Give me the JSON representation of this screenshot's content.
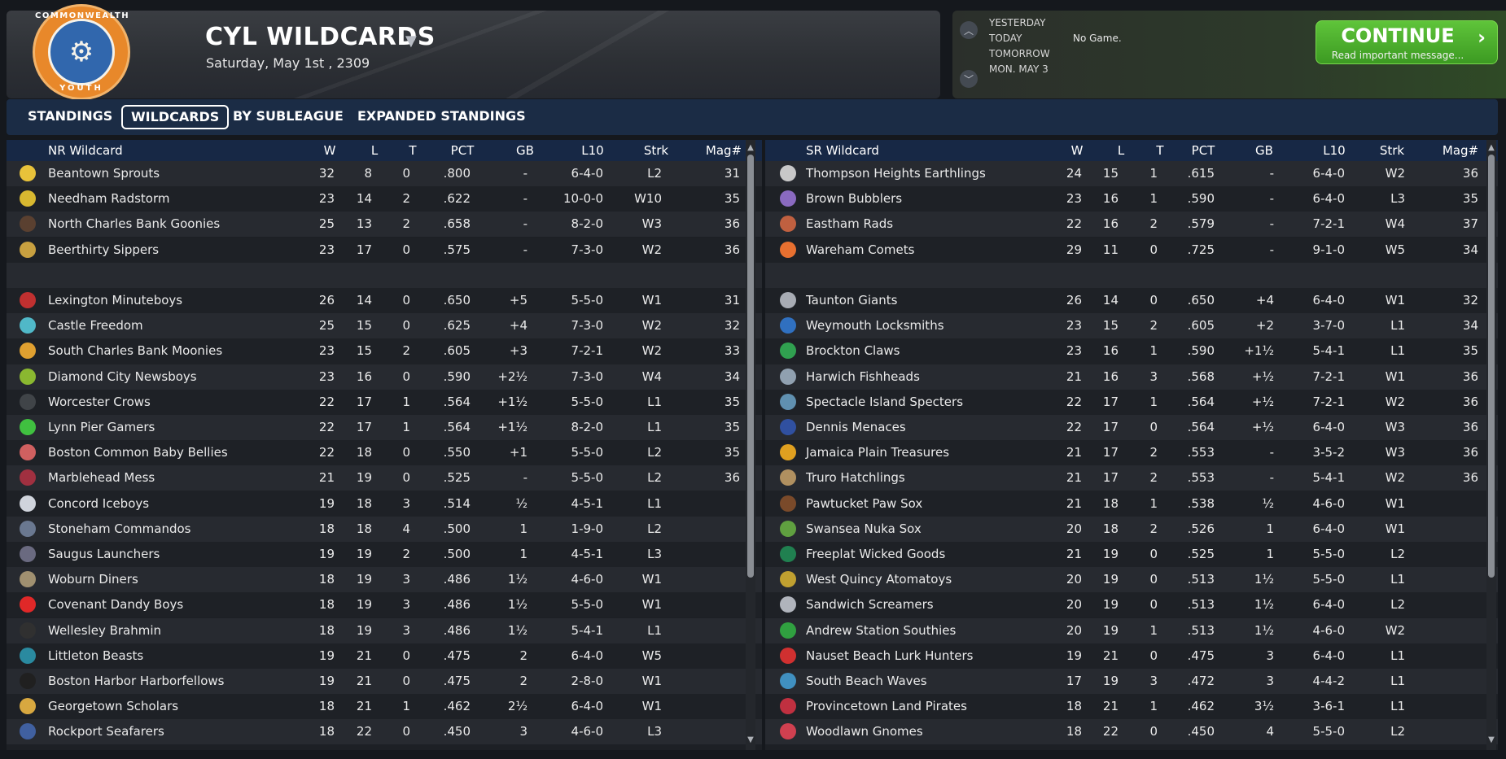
{
  "header": {
    "title": "CYL WILDCARDS",
    "date": "Saturday, May 1st , 2309",
    "logo_text_top": "COMMONWEALTH",
    "logo_text_bottom": "YOUTH"
  },
  "schedule": {
    "days": [
      "YESTERDAY",
      "TODAY",
      "TOMORROW",
      "MON. MAY 3"
    ],
    "today_status": "No Game."
  },
  "continue": {
    "label": "CONTINUE",
    "sub": "Read important message..."
  },
  "tabs": [
    {
      "label": "STANDINGS",
      "active": false
    },
    {
      "label": "WILDCARDS",
      "active": true
    },
    {
      "label": "BY SUBLEAGUE",
      "active": false
    },
    {
      "label": "EXPANDED STANDINGS",
      "active": false
    }
  ],
  "columns": [
    "W",
    "L",
    "T",
    "PCT",
    "GB",
    "L10",
    "Strk",
    "Mag#"
  ],
  "left_table": {
    "title": "NR  Wildcard",
    "leaders": [
      {
        "icon": "sprout-icon",
        "color": "#e8c23a",
        "name": "Beantown Sprouts",
        "w": "32",
        "l": "8",
        "t": "0",
        "pct": ".800",
        "gb": "-",
        "l10": "6-4-0",
        "strk": "L2",
        "mag": "31"
      },
      {
        "icon": "radiation-icon",
        "color": "#d8b830",
        "name": "Needham Radstorm",
        "w": "23",
        "l": "14",
        "t": "2",
        "pct": ".622",
        "gb": "-",
        "l10": "10-0-0",
        "strk": "W10",
        "mag": "35"
      },
      {
        "icon": "goonie-icon",
        "color": "#5a4030",
        "name": "North Charles Bank Goonies",
        "w": "25",
        "l": "13",
        "t": "2",
        "pct": ".658",
        "gb": "-",
        "l10": "8-2-0",
        "strk": "W3",
        "mag": "36"
      },
      {
        "icon": "beer-icon",
        "color": "#c8a040",
        "name": "Beerthirty Sippers",
        "w": "23",
        "l": "17",
        "t": "0",
        "pct": ".575",
        "gb": "-",
        "l10": "7-3-0",
        "strk": "W2",
        "mag": "36"
      }
    ],
    "teams": [
      {
        "icon": "minuteman-icon",
        "color": "#c03030",
        "name": "Lexington Minuteboys",
        "w": "26",
        "l": "14",
        "t": "0",
        "pct": ".650",
        "gb": "+5",
        "l10": "5-5-0",
        "strk": "W1",
        "mag": "31"
      },
      {
        "icon": "tower-icon",
        "color": "#50b8c8",
        "name": "Castle Freedom",
        "w": "25",
        "l": "15",
        "t": "0",
        "pct": ".625",
        "gb": "+4",
        "l10": "7-3-0",
        "strk": "W2",
        "mag": "32"
      },
      {
        "icon": "moon-icon",
        "color": "#e0a030",
        "name": "South Charles Bank Moonies",
        "w": "23",
        "l": "15",
        "t": "2",
        "pct": ".605",
        "gb": "+3",
        "l10": "7-2-1",
        "strk": "W2",
        "mag": "33"
      },
      {
        "icon": "newspaper-icon",
        "color": "#8ab830",
        "name": "Diamond City Newsboys",
        "w": "23",
        "l": "16",
        "t": "0",
        "pct": ".590",
        "gb": "+2½",
        "l10": "7-3-0",
        "strk": "W4",
        "mag": "34"
      },
      {
        "icon": "crow-icon",
        "color": "#404448",
        "name": "Worcester Crows",
        "w": "22",
        "l": "17",
        "t": "1",
        "pct": ".564",
        "gb": "+1½",
        "l10": "5-5-0",
        "strk": "L1",
        "mag": "35"
      },
      {
        "icon": "gamer-icon",
        "color": "#40c040",
        "name": "Lynn Pier Gamers",
        "w": "22",
        "l": "17",
        "t": "1",
        "pct": ".564",
        "gb": "+1½",
        "l10": "8-2-0",
        "strk": "L1",
        "mag": "35"
      },
      {
        "icon": "baby-icon",
        "color": "#d06060",
        "name": "Boston Common Baby Bellies",
        "w": "22",
        "l": "18",
        "t": "0",
        "pct": ".550",
        "gb": "+1",
        "l10": "5-5-0",
        "strk": "L2",
        "mag": "35"
      },
      {
        "icon": "mess-icon",
        "color": "#a03040",
        "name": "Marblehead Mess",
        "w": "21",
        "l": "19",
        "t": "0",
        "pct": ".525",
        "gb": "-",
        "l10": "5-5-0",
        "strk": "L2",
        "mag": "36"
      },
      {
        "icon": "iceboy-icon",
        "color": "#d0d4dc",
        "name": "Concord Iceboys",
        "w": "19",
        "l": "18",
        "t": "3",
        "pct": ".514",
        "gb": "½",
        "l10": "4-5-1",
        "strk": "L1",
        "mag": ""
      },
      {
        "icon": "commando-icon",
        "color": "#6a7890",
        "name": "Stoneham Commandos",
        "w": "18",
        "l": "18",
        "t": "4",
        "pct": ".500",
        "gb": "1",
        "l10": "1-9-0",
        "strk": "L2",
        "mag": ""
      },
      {
        "icon": "launcher-icon",
        "color": "#6a6a80",
        "name": "Saugus Launchers",
        "w": "19",
        "l": "19",
        "t": "2",
        "pct": ".500",
        "gb": "1",
        "l10": "4-5-1",
        "strk": "L3",
        "mag": ""
      },
      {
        "icon": "diner-icon",
        "color": "#a09070",
        "name": "Woburn Diners",
        "w": "18",
        "l": "19",
        "t": "3",
        "pct": ".486",
        "gb": "1½",
        "l10": "4-6-0",
        "strk": "W1",
        "mag": ""
      },
      {
        "icon": "apple-icon",
        "color": "#e02828",
        "name": "Covenant Dandy Boys",
        "w": "18",
        "l": "19",
        "t": "3",
        "pct": ".486",
        "gb": "1½",
        "l10": "5-5-0",
        "strk": "W1",
        "mag": ""
      },
      {
        "icon": "brahmin-icon",
        "color": "#303030",
        "name": "Wellesley Brahmin",
        "w": "18",
        "l": "19",
        "t": "3",
        "pct": ".486",
        "gb": "1½",
        "l10": "5-4-1",
        "strk": "L1",
        "mag": ""
      },
      {
        "icon": "beast-icon",
        "color": "#2a8aa0",
        "name": "Littleton Beasts",
        "w": "19",
        "l": "21",
        "t": "0",
        "pct": ".475",
        "gb": "2",
        "l10": "6-4-0",
        "strk": "W5",
        "mag": ""
      },
      {
        "icon": "harbor-icon",
        "color": "#202020",
        "name": "Boston Harbor Harborfellows",
        "w": "19",
        "l": "21",
        "t": "0",
        "pct": ".475",
        "gb": "2",
        "l10": "2-8-0",
        "strk": "W1",
        "mag": ""
      },
      {
        "icon": "scholar-icon",
        "color": "#d8a840",
        "name": "Georgetown Scholars",
        "w": "18",
        "l": "21",
        "t": "1",
        "pct": ".462",
        "gb": "2½",
        "l10": "6-4-0",
        "strk": "W1",
        "mag": ""
      },
      {
        "icon": "seafarer-icon",
        "color": "#4060a0",
        "name": "Rockport Seafarers",
        "w": "18",
        "l": "22",
        "t": "0",
        "pct": ".450",
        "gb": "3",
        "l10": "4-6-0",
        "strk": "L3",
        "mag": ""
      }
    ]
  },
  "right_table": {
    "title": "SR  Wildcard",
    "leaders": [
      {
        "icon": "earthling-icon",
        "color": "#c8c8c8",
        "name": "Thompson Heights Earthlings",
        "w": "24",
        "l": "15",
        "t": "1",
        "pct": ".615",
        "gb": "-",
        "l10": "6-4-0",
        "strk": "W2",
        "mag": "36"
      },
      {
        "icon": "bubbler-icon",
        "color": "#8a6ac0",
        "name": "Brown Bubblers",
        "w": "23",
        "l": "16",
        "t": "1",
        "pct": ".590",
        "gb": "-",
        "l10": "6-4-0",
        "strk": "L3",
        "mag": "35"
      },
      {
        "icon": "rads-icon",
        "color": "#c06040",
        "name": "Eastham Rads",
        "w": "22",
        "l": "16",
        "t": "2",
        "pct": ".579",
        "gb": "-",
        "l10": "7-2-1",
        "strk": "W4",
        "mag": "37"
      },
      {
        "icon": "comet-icon",
        "color": "#e87030",
        "name": "Wareham Comets",
        "w": "29",
        "l": "11",
        "t": "0",
        "pct": ".725",
        "gb": "-",
        "l10": "9-1-0",
        "strk": "W5",
        "mag": "34"
      }
    ],
    "teams": [
      {
        "icon": "giant-icon",
        "color": "#a8acb4",
        "name": "Taunton Giants",
        "w": "26",
        "l": "14",
        "t": "0",
        "pct": ".650",
        "gb": "+4",
        "l10": "6-4-0",
        "strk": "W1",
        "mag": "32"
      },
      {
        "icon": "locksmith-icon",
        "color": "#3070c0",
        "name": "Weymouth Locksmiths",
        "w": "23",
        "l": "15",
        "t": "2",
        "pct": ".605",
        "gb": "+2",
        "l10": "3-7-0",
        "strk": "L1",
        "mag": "34"
      },
      {
        "icon": "claw-icon",
        "color": "#30a050",
        "name": "Brockton Claws",
        "w": "23",
        "l": "16",
        "t": "1",
        "pct": ".590",
        "gb": "+1½",
        "l10": "5-4-1",
        "strk": "L1",
        "mag": "35"
      },
      {
        "icon": "fish-icon",
        "color": "#90a0b0",
        "name": "Harwich Fishheads",
        "w": "21",
        "l": "16",
        "t": "3",
        "pct": ".568",
        "gb": "+½",
        "l10": "7-2-1",
        "strk": "W1",
        "mag": "36"
      },
      {
        "icon": "specter-icon",
        "color": "#6090b0",
        "name": "Spectacle Island Specters",
        "w": "22",
        "l": "17",
        "t": "1",
        "pct": ".564",
        "gb": "+½",
        "l10": "7-2-1",
        "strk": "W2",
        "mag": "36"
      },
      {
        "icon": "menace-icon",
        "color": "#3050a0",
        "name": "Dennis Menaces",
        "w": "22",
        "l": "17",
        "t": "0",
        "pct": ".564",
        "gb": "+½",
        "l10": "6-4-0",
        "strk": "W3",
        "mag": "36"
      },
      {
        "icon": "treasure-icon",
        "color": "#e0a020",
        "name": "Jamaica Plain Treasures",
        "w": "21",
        "l": "17",
        "t": "2",
        "pct": ".553",
        "gb": "-",
        "l10": "3-5-2",
        "strk": "W3",
        "mag": "36"
      },
      {
        "icon": "hatchling-icon",
        "color": "#b09060",
        "name": "Truro Hatchlings",
        "w": "21",
        "l": "17",
        "t": "2",
        "pct": ".553",
        "gb": "-",
        "l10": "5-4-1",
        "strk": "W2",
        "mag": "36"
      },
      {
        "icon": "paw-icon",
        "color": "#7a4a2a",
        "name": "Pawtucket Paw Sox",
        "w": "21",
        "l": "18",
        "t": "1",
        "pct": ".538",
        "gb": "½",
        "l10": "4-6-0",
        "strk": "W1",
        "mag": ""
      },
      {
        "icon": "nuka-icon",
        "color": "#60a040",
        "name": "Swansea Nuka Sox",
        "w": "20",
        "l": "18",
        "t": "2",
        "pct": ".526",
        "gb": "1",
        "l10": "6-4-0",
        "strk": "W1",
        "mag": ""
      },
      {
        "icon": "goods-icon",
        "color": "#208050",
        "name": "Freeplat Wicked Goods",
        "w": "21",
        "l": "19",
        "t": "0",
        "pct": ".525",
        "gb": "1",
        "l10": "5-5-0",
        "strk": "L2",
        "mag": ""
      },
      {
        "icon": "atom-icon",
        "color": "#c0a030",
        "name": "West Quincy Atomatoys",
        "w": "20",
        "l": "19",
        "t": "0",
        "pct": ".513",
        "gb": "1½",
        "l10": "5-5-0",
        "strk": "L1",
        "mag": ""
      },
      {
        "icon": "screamer-icon",
        "color": "#b0b4bc",
        "name": "Sandwich Screamers",
        "w": "20",
        "l": "19",
        "t": "0",
        "pct": ".513",
        "gb": "1½",
        "l10": "6-4-0",
        "strk": "L2",
        "mag": ""
      },
      {
        "icon": "shamrock-icon",
        "color": "#30a040",
        "name": "Andrew Station Southies",
        "w": "20",
        "l": "19",
        "t": "1",
        "pct": ".513",
        "gb": "1½",
        "l10": "4-6-0",
        "strk": "W2",
        "mag": ""
      },
      {
        "icon": "hunter-icon",
        "color": "#d03030",
        "name": "Nauset Beach Lurk Hunters",
        "w": "19",
        "l": "21",
        "t": "0",
        "pct": ".475",
        "gb": "3",
        "l10": "6-4-0",
        "strk": "L1",
        "mag": ""
      },
      {
        "icon": "wave-icon",
        "color": "#4090c0",
        "name": "South Beach Waves",
        "w": "17",
        "l": "19",
        "t": "3",
        "pct": ".472",
        "gb": "3",
        "l10": "4-4-2",
        "strk": "L1",
        "mag": ""
      },
      {
        "icon": "pirate-icon",
        "color": "#c03040",
        "name": "Provincetown Land Pirates",
        "w": "18",
        "l": "21",
        "t": "1",
        "pct": ".462",
        "gb": "3½",
        "l10": "3-6-1",
        "strk": "L1",
        "mag": ""
      },
      {
        "icon": "gnome-icon",
        "color": "#d04050",
        "name": "Woodlawn Gnomes",
        "w": "18",
        "l": "22",
        "t": "0",
        "pct": ".450",
        "gb": "4",
        "l10": "5-5-0",
        "strk": "L2",
        "mag": ""
      }
    ]
  }
}
